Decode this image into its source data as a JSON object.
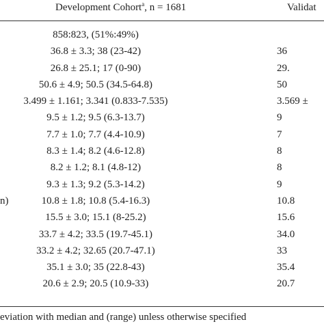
{
  "header": {
    "dev_label": "Development Cohort",
    "dev_sup": "a",
    "dev_n": ", n = 1681",
    "val_label": "Validat"
  },
  "rows": [
    {
      "label": "",
      "dev": "858:823, (51%:49%)",
      "val": ""
    },
    {
      "label": "",
      "dev": "36.8 ± 3.3; 38 (23-42)",
      "val": "36"
    },
    {
      "label": "",
      "dev": "26.8 ± 25.1; 17 (0-90)",
      "val": "29."
    },
    {
      "label": "",
      "dev": "50.6 ± 4.9; 50.5 (34.5-64.8)",
      "val": "50"
    },
    {
      "label": "",
      "dev": "3.499 ± 1.161; 3.341 (0.833-7.535)",
      "val": "3.569 ±"
    },
    {
      "label": "",
      "dev": "9.5 ± 1.2; 9.5 (6.3-13.7)",
      "val": "9"
    },
    {
      "label": "",
      "dev": "7.7 ± 1.0; 7.7 (4.4-10.9)",
      "val": "7"
    },
    {
      "label": "",
      "dev": "8.3 ± 1.4; 8.2 (4.6-12.8)",
      "val": "8"
    },
    {
      "label": "",
      "dev": "8.2 ± 1.2; 8.1 (4.8-12)",
      "val": "8"
    },
    {
      "label": "",
      "dev": "9.3 ± 1.3; 9.2 (5.3-14.2)",
      "val": "9"
    },
    {
      "label": "n)",
      "dev": "10.8 ± 1.8; 10.8 (5.4-16.3)",
      "val": "10.8"
    },
    {
      "label": "",
      "dev": "15.5 ± 3.0; 15.1 (8-25.2)",
      "val": "15.6"
    },
    {
      "label": "",
      "dev": "33.7 ± 4.2; 33.5 (19.7-45.1)",
      "val": "34.0"
    },
    {
      "label": "",
      "dev": "33.2 ± 4.2; 32.65 (20.7-47.1)",
      "val": "33"
    },
    {
      "label": "",
      "dev": "35.1 ± 3.0; 35 (22.8-43)",
      "val": "35.4"
    },
    {
      "label": "",
      "dev": "20.6 ± 2.9; 20.5 (10.9-33)",
      "val": "20.7"
    }
  ],
  "footnote": "eviation with median and (range) unless otherwise specified"
}
